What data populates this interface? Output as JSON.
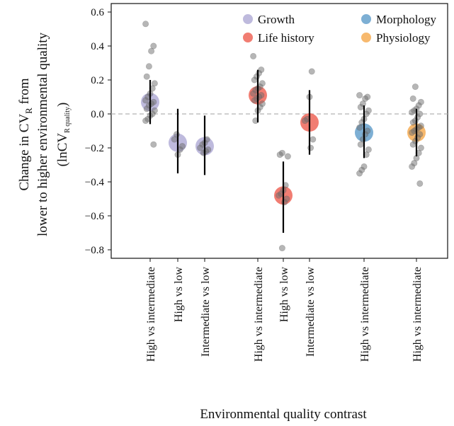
{
  "chart_data": {
    "type": "scatter",
    "xlabel": "Environmental quality contrast",
    "ylabel": {
      "line1_prefix": "Change in CV",
      "line1_sub": "R",
      "line1_suffix": " from",
      "line2": "lower to higher environmental quality",
      "line3_prefix": "(lnCV",
      "line3_sub": "R quality",
      "line3_suffix": ")"
    },
    "ylim": [
      -0.85,
      0.65
    ],
    "yticks": [
      -0.8,
      -0.6,
      -0.4,
      -0.2,
      0.0,
      0.2,
      0.4,
      0.6
    ],
    "ytick_labels": [
      "−0.8",
      "−0.6",
      "−0.4",
      "−0.2",
      "0.0",
      "0.2",
      "0.4",
      "0.6"
    ],
    "reference_line": 0,
    "grid": false,
    "legend_position": "top-right",
    "trait_colors": {
      "Growth": "#b7b2d9",
      "Life history": "#ef6f63",
      "Morphology": "#6fa6cf",
      "Physiology": "#f6b15e"
    },
    "legend": [
      "Growth",
      "Morphology",
      "Life history",
      "Physiology"
    ],
    "categories": [
      {
        "label": "High vs intermediate",
        "trait": "Growth",
        "mean": 0.07,
        "ci": [
          -0.06,
          0.2
        ],
        "points": [
          0.53,
          0.4,
          0.37,
          0.28,
          0.22,
          0.18,
          0.15,
          0.12,
          0.1,
          0.08,
          0.07,
          0.06,
          0.05,
          0.03,
          0.02,
          0.0,
          -0.01,
          -0.03,
          -0.04,
          -0.18
        ]
      },
      {
        "label": "High vs low",
        "trait": "Growth",
        "mean": -0.17,
        "ci": [
          -0.35,
          0.03
        ],
        "points": [
          -0.12,
          -0.15,
          -0.19,
          -0.21,
          -0.24
        ]
      },
      {
        "label": "Intermediate vs low",
        "trait": "Growth",
        "mean": -0.19,
        "ci": [
          -0.36,
          -0.01
        ],
        "points": [
          -0.15,
          -0.17,
          -0.18,
          -0.2,
          -0.21,
          -0.22,
          -0.23
        ]
      },
      {
        "label": "High vs intermediate",
        "trait": "Life history",
        "mean": 0.11,
        "ci": [
          -0.05,
          0.26
        ],
        "points": [
          0.34,
          0.26,
          0.24,
          0.22,
          0.2,
          0.18,
          0.16,
          0.15,
          0.14,
          0.12,
          0.11,
          0.1,
          0.09,
          0.08,
          0.06,
          0.04,
          0.02,
          -0.04
        ]
      },
      {
        "label": "High vs low",
        "trait": "Life history",
        "mean": -0.48,
        "ci": [
          -0.7,
          -0.28
        ],
        "points": [
          -0.23,
          -0.24,
          -0.25,
          -0.42,
          -0.45,
          -0.47,
          -0.48,
          -0.5,
          -0.52,
          -0.79
        ]
      },
      {
        "label": "Intermediate vs low",
        "trait": "Life history",
        "mean": -0.05,
        "ci": [
          -0.24,
          0.14
        ],
        "points": [
          0.25,
          0.1,
          -0.03,
          -0.04,
          -0.15,
          -0.2
        ]
      },
      {
        "label": "High vs intermediate",
        "trait": "Morphology",
        "mean": -0.11,
        "ci": [
          -0.26,
          0.05
        ],
        "points": [
          0.11,
          0.1,
          0.09,
          0.06,
          0.04,
          0.02,
          0.0,
          -0.03,
          -0.05,
          -0.08,
          -0.1,
          -0.12,
          -0.15,
          -0.18,
          -0.21,
          -0.24,
          -0.31,
          -0.33,
          -0.35
        ]
      },
      {
        "label": "High vs intermediate",
        "trait": "Physiology",
        "mean": -0.11,
        "ci": [
          -0.25,
          0.03
        ],
        "points": [
          0.16,
          0.09,
          0.07,
          0.05,
          0.03,
          0.02,
          0.01,
          0.0,
          -0.02,
          -0.04,
          -0.05,
          -0.07,
          -0.08,
          -0.09,
          -0.1,
          -0.11,
          -0.12,
          -0.14,
          -0.16,
          -0.18,
          -0.2,
          -0.23,
          -0.26,
          -0.29,
          -0.31,
          -0.41
        ]
      }
    ]
  }
}
